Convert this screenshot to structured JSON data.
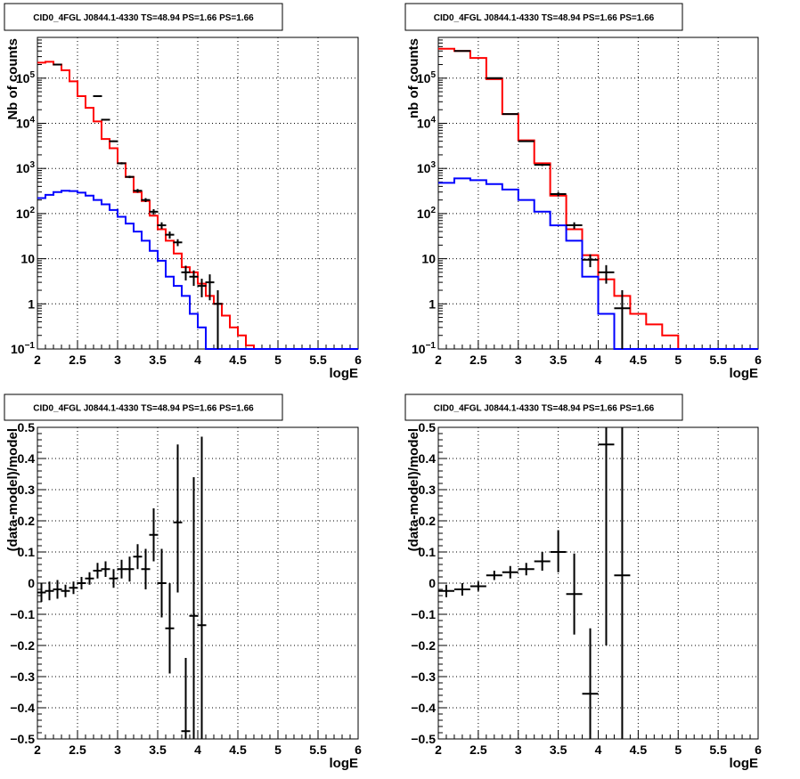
{
  "chart_data": [
    {
      "type": "line",
      "title": "CID0_4FGL J0844.1-4330 TS=48.94 PS=1.66 PS=1.66",
      "xlabel": "logE",
      "ylabel": "Nb of counts",
      "xlim": [
        2,
        6
      ],
      "ylim": [
        0.1,
        800000
      ],
      "yscale": "log",
      "grid": true,
      "xticks": [
        2,
        2.5,
        3,
        3.5,
        4,
        4.5,
        5,
        5.5,
        6
      ],
      "xtick_labels": [
        "2",
        "2.5",
        "3",
        "3.5",
        "4",
        "4.5",
        "5",
        "5.5",
        "6"
      ],
      "yticks": [
        0.1,
        1,
        10,
        100,
        1000,
        10000,
        100000
      ],
      "ytick_labels": [
        "10^-1",
        "1",
        "10",
        "10^2",
        "10^3",
        "10^4",
        "10^5"
      ],
      "series": [
        {
          "role": "model-total",
          "color": "#ff0000",
          "edges": [
            2.0,
            2.1,
            2.2,
            2.3,
            2.4,
            2.5,
            2.6,
            2.7,
            2.8,
            2.9,
            3.0,
            3.1,
            3.2,
            3.3,
            3.4,
            3.5,
            3.6,
            3.7,
            3.8,
            3.9,
            4.0,
            4.1,
            4.2,
            4.3,
            4.4,
            4.5,
            4.6,
            4.7,
            4.8,
            4.9,
            5.0,
            5.1,
            5.2,
            5.3,
            5.4,
            5.5,
            5.6,
            5.7,
            5.8,
            5.9,
            6.0
          ],
          "values": [
            220000,
            230000,
            200000,
            150000,
            85000,
            40000,
            22000,
            11000,
            4500,
            2800,
            1300,
            650,
            300,
            190,
            90,
            45,
            25,
            13,
            6.5,
            5,
            2.8,
            1.5,
            1,
            0.55,
            0.3,
            0.2,
            0.12,
            0.1,
            0.1,
            0.1,
            0.1,
            0.1,
            0.1,
            0.1,
            0.1,
            0.1,
            0.1,
            0.1,
            0.1,
            0.1
          ]
        },
        {
          "role": "model-source",
          "color": "#0000ff",
          "edges": [
            2.0,
            2.1,
            2.2,
            2.3,
            2.4,
            2.5,
            2.6,
            2.7,
            2.8,
            2.9,
            3.0,
            3.1,
            3.2,
            3.3,
            3.4,
            3.5,
            3.6,
            3.7,
            3.8,
            3.9,
            4.0,
            4.1,
            4.2,
            4.3,
            4.4,
            4.5,
            4.6,
            4.7,
            4.8,
            4.9,
            5.0,
            5.1,
            5.2,
            5.3,
            5.4,
            5.5,
            5.6,
            5.7,
            5.8,
            5.9,
            6.0
          ],
          "values": [
            220,
            260,
            300,
            320,
            315,
            290,
            250,
            200,
            160,
            120,
            85,
            60,
            40,
            25,
            15,
            9,
            4,
            2.5,
            1.5,
            0.6,
            0.3,
            0.1,
            0.1,
            0.1,
            0.1,
            0.1,
            0.1,
            0.1,
            0.1,
            0.1,
            0.1,
            0.1,
            0.1,
            0.1,
            0.1,
            0.1,
            0.1,
            0.1,
            0.1,
            0.1
          ]
        },
        {
          "role": "data",
          "color": "#000000",
          "x": [
            2.25,
            2.75,
            2.85,
            2.95,
            3.05,
            3.15,
            3.25,
            3.35,
            3.45,
            3.55,
            3.65,
            3.75,
            3.85,
            3.95,
            4.05,
            4.15,
            4.25
          ],
          "y": [
            200000,
            40000,
            12000,
            4000,
            1300,
            650,
            320,
            200,
            110,
            55,
            34,
            23,
            5,
            4,
            2.5,
            3,
            1
          ],
          "ylo": [
            195000,
            39000,
            11500,
            3850,
            1230,
            610,
            290,
            180,
            95,
            46,
            28,
            19,
            3.3,
            2.5,
            1.4,
            1.2,
            0.1
          ],
          "yhi": [
            205000,
            41000,
            12500,
            4150,
            1370,
            690,
            350,
            220,
            125,
            64,
            40,
            27,
            7,
            5.5,
            3.6,
            4.5,
            2
          ]
        }
      ]
    },
    {
      "type": "line",
      "title": "CID0_4FGL J0844.1-4330 TS=48.94 PS=1.66 PS=1.66",
      "xlabel": "logE",
      "ylabel": "nb of counts",
      "xlim": [
        2,
        6
      ],
      "ylim": [
        0.1,
        800000
      ],
      "yscale": "log",
      "grid": true,
      "xticks": [
        2,
        2.5,
        3,
        3.5,
        4,
        4.5,
        5,
        5.5,
        6
      ],
      "xtick_labels": [
        "2",
        "2.5",
        "3",
        "3.5",
        "4",
        "4.5",
        "5",
        "5.5",
        "6"
      ],
      "yticks": [
        0.1,
        1,
        10,
        100,
        1000,
        10000,
        100000
      ],
      "ytick_labels": [
        "10^-1",
        "1",
        "10",
        "10^2",
        "10^3",
        "10^4",
        "10^5"
      ],
      "series": [
        {
          "role": "model-total",
          "color": "#ff0000",
          "edges": [
            2.0,
            2.2,
            2.4,
            2.6,
            2.8,
            3.0,
            3.2,
            3.4,
            3.6,
            3.8,
            4.0,
            4.2,
            4.4,
            4.6,
            4.8,
            5.0,
            5.2,
            5.4,
            5.6,
            5.8,
            6.0
          ],
          "values": [
            450000,
            400000,
            280000,
            95000,
            16000,
            4200,
            1300,
            250,
            45,
            12,
            3.5,
            1.5,
            0.6,
            0.35,
            0.2,
            0.1,
            0.1,
            0.1,
            0.1,
            0.1
          ]
        },
        {
          "role": "model-source",
          "color": "#0000ff",
          "edges": [
            2.0,
            2.2,
            2.4,
            2.6,
            2.8,
            3.0,
            3.2,
            3.4,
            3.6,
            3.8,
            4.0,
            4.2,
            4.4,
            4.6,
            4.8,
            5.0,
            5.2,
            5.4,
            5.6,
            5.8,
            6.0
          ],
          "values": [
            480,
            600,
            550,
            450,
            340,
            200,
            110,
            55,
            25,
            4,
            0.6,
            0.1,
            0.1,
            0.1,
            0.1,
            0.1,
            0.1,
            0.1,
            0.1,
            0.1
          ]
        },
        {
          "role": "data",
          "color": "#000000",
          "x": [
            2.3,
            2.7,
            2.9,
            3.1,
            3.3,
            3.5,
            3.7,
            3.9,
            4.1,
            4.3
          ],
          "y": [
            400000,
            100000,
            16000,
            4000,
            1200,
            270,
            55,
            9.5,
            5,
            0.8
          ],
          "ylo": [
            395000,
            99000,
            15700,
            3850,
            1130,
            240,
            46,
            6.5,
            2.8,
            0.1
          ],
          "yhi": [
            405000,
            101000,
            16300,
            4150,
            1270,
            300,
            64,
            12.5,
            7.2,
            2
          ]
        }
      ]
    },
    {
      "type": "scatter",
      "title": "CID0_4FGL J0844.1-4330 TS=48.94 PS=1.66 PS=1.66",
      "xlabel": "logE",
      "ylabel": "(data-model)/model",
      "xlim": [
        2,
        6
      ],
      "ylim": [
        -0.5,
        0.5
      ],
      "yscale": "linear",
      "grid": true,
      "xticks": [
        2,
        2.5,
        3,
        3.5,
        4,
        4.5,
        5,
        5.5,
        6
      ],
      "xtick_labels": [
        "2",
        "2.5",
        "3",
        "3.5",
        "4",
        "4.5",
        "5",
        "5.5",
        "6"
      ],
      "yticks": [
        -0.5,
        -0.4,
        -0.3,
        -0.2,
        -0.1,
        0,
        0.1,
        0.2,
        0.3,
        0.4,
        0.5
      ],
      "ytick_labels": [
        "−0.5",
        "−0.4",
        "−0.3",
        "−0.2",
        "−0.1",
        "0",
        "0.1",
        "0.2",
        "0.3",
        "0.4",
        "0.5"
      ],
      "series": [
        {
          "role": "residuals",
          "color": "#000000",
          "x": [
            2.05,
            2.15,
            2.25,
            2.35,
            2.45,
            2.55,
            2.65,
            2.75,
            2.85,
            2.95,
            3.05,
            3.15,
            3.25,
            3.35,
            3.45,
            3.55,
            3.65,
            3.75,
            3.85,
            3.95,
            4.05
          ],
          "y": [
            -0.03,
            -0.025,
            -0.02,
            -0.025,
            -0.015,
            0.0,
            0.015,
            0.04,
            0.045,
            0.015,
            0.045,
            0.045,
            0.085,
            0.045,
            0.155,
            0.0,
            -0.145,
            0.195,
            -0.475,
            -0.105,
            -0.135
          ],
          "ylo": [
            -0.06,
            -0.055,
            -0.05,
            -0.045,
            -0.035,
            -0.02,
            -0.005,
            0.015,
            0.02,
            -0.015,
            0.015,
            0.005,
            0.045,
            -0.02,
            0.07,
            -0.11,
            -0.29,
            -0.03,
            -0.72,
            -0.55,
            -0.75
          ],
          "yhi": [
            0.0,
            0.005,
            0.01,
            -0.005,
            0.005,
            0.02,
            0.035,
            0.065,
            0.07,
            0.045,
            0.075,
            0.085,
            0.125,
            0.11,
            0.24,
            0.11,
            0.0,
            0.445,
            -0.24,
            0.34,
            0.47
          ]
        }
      ]
    },
    {
      "type": "scatter",
      "title": "CID0_4FGL J0844.1-4330 TS=48.94 PS=1.66 PS=1.66",
      "xlabel": "logE",
      "ylabel": "(data-model)/model",
      "xlim": [
        2,
        6
      ],
      "ylim": [
        -0.5,
        0.5
      ],
      "yscale": "linear",
      "grid": true,
      "xticks": [
        2,
        2.5,
        3,
        3.5,
        4,
        4.5,
        5,
        5.5,
        6
      ],
      "xtick_labels": [
        "2",
        "2.5",
        "3",
        "3.5",
        "4",
        "4.5",
        "5",
        "5.5",
        "6"
      ],
      "yticks": [
        -0.5,
        -0.4,
        -0.3,
        -0.2,
        -0.1,
        0,
        0.1,
        0.2,
        0.3,
        0.4,
        0.5
      ],
      "ytick_labels": [
        "−0.5",
        "−0.4",
        "−0.3",
        "−0.2",
        "−0.1",
        "0",
        "0.1",
        "0.2",
        "0.3",
        "0.4",
        "0.5"
      ],
      "series": [
        {
          "role": "residuals",
          "color": "#000000",
          "x": [
            2.1,
            2.3,
            2.5,
            2.7,
            2.9,
            3.1,
            3.3,
            3.5,
            3.7,
            3.9,
            4.1,
            4.3
          ],
          "y": [
            -0.025,
            -0.02,
            -0.01,
            0.025,
            0.035,
            0.045,
            0.07,
            0.1,
            -0.035,
            -0.355,
            0.445,
            0.025
          ],
          "ylo": [
            -0.045,
            -0.04,
            -0.025,
            0.01,
            0.015,
            0.025,
            0.04,
            0.035,
            -0.165,
            -0.56,
            -0.2,
            -0.55
          ],
          "yhi": [
            -0.005,
            0.0,
            0.005,
            0.04,
            0.055,
            0.065,
            0.1,
            0.17,
            0.095,
            -0.145,
            0.55,
            0.55
          ]
        }
      ]
    }
  ]
}
